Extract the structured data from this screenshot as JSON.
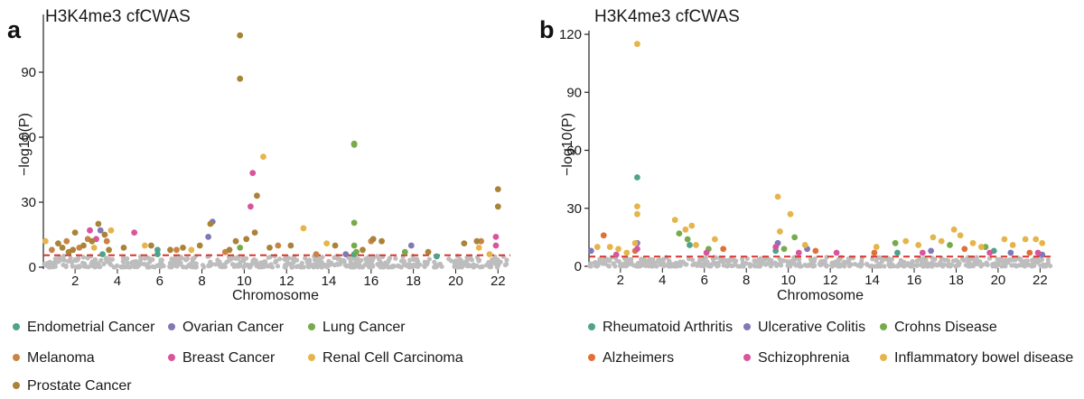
{
  "figure": {
    "background": "#ffffff",
    "threshold_color": "#d9342b",
    "background_points_color": "#bdbdbd"
  },
  "chart_data": [
    {
      "panel": "a",
      "type": "scatter",
      "subtype": "manhattan",
      "title": "H3K4me3 cfCWAS",
      "xlabel": "Chromosome",
      "ylabel": "−log10(P)",
      "ylim": [
        0,
        115
      ],
      "yticks": [
        0,
        30,
        60,
        90
      ],
      "xlim": [
        0.5,
        22.5
      ],
      "xticks": [
        {
          "chrom": 2,
          "label": "2"
        },
        {
          "chrom": 4,
          "label": "4"
        },
        {
          "chrom": 6,
          "label": "6"
        },
        {
          "chrom": 8,
          "label": "8"
        },
        {
          "chrom": 10,
          "label": "10"
        },
        {
          "chrom": 12,
          "label": "12"
        },
        {
          "chrom": 14,
          "label": "14"
        },
        {
          "chrom": 16,
          "label": "16"
        },
        {
          "chrom": 18,
          "label": "18"
        },
        {
          "chrom": 20,
          "label": "20"
        },
        {
          "chrom": 22,
          "label": "22"
        }
      ],
      "threshold": 5.5,
      "legend_position": "bottom",
      "series": [
        {
          "name": "Endometrial Cancer",
          "color": "#4fa38c",
          "points": [
            {
              "x": 3.3,
              "y": 6
            },
            {
              "x": 5.9,
              "y": 8
            },
            {
              "x": 5.9,
              "y": 6
            },
            {
              "x": 15.2,
              "y": 6
            },
            {
              "x": 19.1,
              "y": 5
            }
          ]
        },
        {
          "name": "Ovarian Cancer",
          "color": "#7f79b6",
          "points": [
            {
              "x": 3.2,
              "y": 17
            },
            {
              "x": 8.5,
              "y": 21
            },
            {
              "x": 8.3,
              "y": 14
            },
            {
              "x": 14.8,
              "y": 6
            },
            {
              "x": 17.9,
              "y": 10
            }
          ]
        },
        {
          "name": "Lung Cancer",
          "color": "#76ab4c",
          "points": [
            {
              "x": 15.2,
              "y": 57
            },
            {
              "x": 15.2,
              "y": 56.5
            },
            {
              "x": 15.2,
              "y": 20.5
            },
            {
              "x": 15.2,
              "y": 10
            },
            {
              "x": 15.3,
              "y": 7
            },
            {
              "x": 9.8,
              "y": 9
            },
            {
              "x": 17.6,
              "y": 7
            }
          ]
        },
        {
          "name": "Melanoma",
          "color": "#c98445",
          "points": [
            {
              "x": 0.9,
              "y": 8
            },
            {
              "x": 1.6,
              "y": 12
            },
            {
              "x": 2.2,
              "y": 9
            },
            {
              "x": 2.6,
              "y": 13
            },
            {
              "x": 3.5,
              "y": 12
            },
            {
              "x": 6.8,
              "y": 8
            },
            {
              "x": 9.1,
              "y": 7
            },
            {
              "x": 11.6,
              "y": 10
            },
            {
              "x": 13.4,
              "y": 6
            },
            {
              "x": 16.0,
              "y": 12
            },
            {
              "x": 21.2,
              "y": 12
            }
          ]
        },
        {
          "name": "Breast Cancer",
          "color": "#d8559c",
          "points": [
            {
              "x": 2.7,
              "y": 17
            },
            {
              "x": 3.0,
              "y": 13
            },
            {
              "x": 4.8,
              "y": 16
            },
            {
              "x": 10.4,
              "y": 43.5
            },
            {
              "x": 10.3,
              "y": 28
            },
            {
              "x": 21.9,
              "y": 14
            },
            {
              "x": 21.9,
              "y": 10
            }
          ]
        },
        {
          "name": "Renal Cell Carcinoma",
          "color": "#e5b54c",
          "points": [
            {
              "x": 0.6,
              "y": 12
            },
            {
              "x": 2.9,
              "y": 9
            },
            {
              "x": 3.7,
              "y": 17
            },
            {
              "x": 5.3,
              "y": 10
            },
            {
              "x": 7.5,
              "y": 8
            },
            {
              "x": 10.9,
              "y": 51
            },
            {
              "x": 12.8,
              "y": 18
            },
            {
              "x": 13.9,
              "y": 11
            },
            {
              "x": 21.1,
              "y": 9
            },
            {
              "x": 21.6,
              "y": 6
            }
          ]
        },
        {
          "name": "Prostate Cancer",
          "color": "#a98338",
          "points": [
            {
              "x": 9.8,
              "y": 107
            },
            {
              "x": 9.8,
              "y": 87
            },
            {
              "x": 10.6,
              "y": 33
            },
            {
              "x": 10.5,
              "y": 16
            },
            {
              "x": 9.6,
              "y": 12
            },
            {
              "x": 22.0,
              "y": 36
            },
            {
              "x": 22.0,
              "y": 28
            },
            {
              "x": 1.2,
              "y": 11
            },
            {
              "x": 1.4,
              "y": 9
            },
            {
              "x": 1.7,
              "y": 7
            },
            {
              "x": 1.9,
              "y": 8
            },
            {
              "x": 2.0,
              "y": 16
            },
            {
              "x": 2.4,
              "y": 10
            },
            {
              "x": 2.8,
              "y": 12
            },
            {
              "x": 3.1,
              "y": 20
            },
            {
              "x": 3.4,
              "y": 15
            },
            {
              "x": 3.6,
              "y": 8
            },
            {
              "x": 4.3,
              "y": 9
            },
            {
              "x": 5.6,
              "y": 10
            },
            {
              "x": 6.5,
              "y": 8
            },
            {
              "x": 7.1,
              "y": 9
            },
            {
              "x": 7.9,
              "y": 10
            },
            {
              "x": 8.4,
              "y": 20
            },
            {
              "x": 9.3,
              "y": 8
            },
            {
              "x": 10.1,
              "y": 13
            },
            {
              "x": 11.2,
              "y": 9
            },
            {
              "x": 12.2,
              "y": 10
            },
            {
              "x": 14.3,
              "y": 10
            },
            {
              "x": 15.6,
              "y": 8
            },
            {
              "x": 16.1,
              "y": 13
            },
            {
              "x": 16.5,
              "y": 12
            },
            {
              "x": 18.7,
              "y": 7
            },
            {
              "x": 20.4,
              "y": 11
            },
            {
              "x": 21.0,
              "y": 12
            }
          ]
        }
      ]
    },
    {
      "panel": "b",
      "type": "scatter",
      "subtype": "manhattan",
      "title": "H3K4me3 cfCWAS",
      "xlabel": "Chromosome",
      "ylabel": "−log10(P)",
      "ylim": [
        0,
        120
      ],
      "yticks": [
        0,
        30,
        60,
        90,
        120
      ],
      "xlim": [
        0.5,
        22.5
      ],
      "xticks": [
        {
          "chrom": 2,
          "label": "2"
        },
        {
          "chrom": 4,
          "label": "4"
        },
        {
          "chrom": 6,
          "label": "6"
        },
        {
          "chrom": 8,
          "label": "8"
        },
        {
          "chrom": 10,
          "label": "10"
        },
        {
          "chrom": 12,
          "label": "12"
        },
        {
          "chrom": 14,
          "label": "14"
        },
        {
          "chrom": 16,
          "label": "16"
        },
        {
          "chrom": 18,
          "label": "18"
        },
        {
          "chrom": 20,
          "label": "20"
        },
        {
          "chrom": 22,
          "label": "22"
        }
      ],
      "threshold": 5.0,
      "legend_position": "bottom",
      "series": [
        {
          "name": "Rheumatoid Arthritis",
          "color": "#4fa38c",
          "points": [
            {
              "x": 2.8,
              "y": 46
            },
            {
              "x": 5.3,
              "y": 11
            },
            {
              "x": 9.4,
              "y": 8
            },
            {
              "x": 15.2,
              "y": 7
            },
            {
              "x": 19.8,
              "y": 8
            }
          ]
        },
        {
          "name": "Ulcerative Colitis",
          "color": "#7f79b6",
          "points": [
            {
              "x": 0.6,
              "y": 8
            },
            {
              "x": 2.8,
              "y": 12
            },
            {
              "x": 9.5,
              "y": 12
            },
            {
              "x": 10.9,
              "y": 9
            },
            {
              "x": 16.8,
              "y": 8
            },
            {
              "x": 20.6,
              "y": 7
            },
            {
              "x": 22.1,
              "y": 6
            }
          ]
        },
        {
          "name": "Crohns Disease",
          "color": "#76ab4c",
          "points": [
            {
              "x": 4.8,
              "y": 17
            },
            {
              "x": 5.2,
              "y": 14
            },
            {
              "x": 6.2,
              "y": 9
            },
            {
              "x": 9.8,
              "y": 9
            },
            {
              "x": 10.3,
              "y": 15
            },
            {
              "x": 15.1,
              "y": 12
            },
            {
              "x": 17.7,
              "y": 11
            },
            {
              "x": 19.4,
              "y": 10
            }
          ]
        },
        {
          "name": "Alzheimers",
          "color": "#e0703a",
          "points": [
            {
              "x": 1.2,
              "y": 16
            },
            {
              "x": 2.7,
              "y": 8
            },
            {
              "x": 6.9,
              "y": 9
            },
            {
              "x": 11.3,
              "y": 8
            },
            {
              "x": 14.1,
              "y": 7
            },
            {
              "x": 18.4,
              "y": 9
            },
            {
              "x": 21.5,
              "y": 7
            }
          ]
        },
        {
          "name": "Schizophrenia",
          "color": "#d8559c",
          "points": [
            {
              "x": 1.8,
              "y": 6
            },
            {
              "x": 2.8,
              "y": 9
            },
            {
              "x": 6.1,
              "y": 7
            },
            {
              "x": 9.4,
              "y": 10
            },
            {
              "x": 10.5,
              "y": 7
            },
            {
              "x": 12.3,
              "y": 7
            },
            {
              "x": 16.4,
              "y": 7
            },
            {
              "x": 19.6,
              "y": 7
            },
            {
              "x": 21.9,
              "y": 7
            }
          ]
        },
        {
          "name": "Inflammatory bowel disease",
          "color": "#e5b54c",
          "points": [
            {
              "x": 2.8,
              "y": 115
            },
            {
              "x": 2.8,
              "y": 31
            },
            {
              "x": 2.8,
              "y": 27
            },
            {
              "x": 2.7,
              "y": 12
            },
            {
              "x": 0.9,
              "y": 10
            },
            {
              "x": 1.5,
              "y": 10
            },
            {
              "x": 1.9,
              "y": 9
            },
            {
              "x": 2.3,
              "y": 7
            },
            {
              "x": 4.6,
              "y": 24
            },
            {
              "x": 5.1,
              "y": 19
            },
            {
              "x": 5.4,
              "y": 21
            },
            {
              "x": 5.6,
              "y": 11
            },
            {
              "x": 6.5,
              "y": 14
            },
            {
              "x": 9.5,
              "y": 36
            },
            {
              "x": 9.6,
              "y": 18
            },
            {
              "x": 10.1,
              "y": 27
            },
            {
              "x": 10.8,
              "y": 11
            },
            {
              "x": 14.2,
              "y": 10
            },
            {
              "x": 15.6,
              "y": 13
            },
            {
              "x": 16.2,
              "y": 11
            },
            {
              "x": 16.9,
              "y": 15
            },
            {
              "x": 17.3,
              "y": 13
            },
            {
              "x": 17.9,
              "y": 19
            },
            {
              "x": 18.2,
              "y": 16
            },
            {
              "x": 18.8,
              "y": 12
            },
            {
              "x": 19.2,
              "y": 10
            },
            {
              "x": 20.3,
              "y": 14
            },
            {
              "x": 20.7,
              "y": 11
            },
            {
              "x": 21.3,
              "y": 14
            },
            {
              "x": 21.8,
              "y": 14
            },
            {
              "x": 22.1,
              "y": 12
            }
          ]
        }
      ]
    }
  ]
}
